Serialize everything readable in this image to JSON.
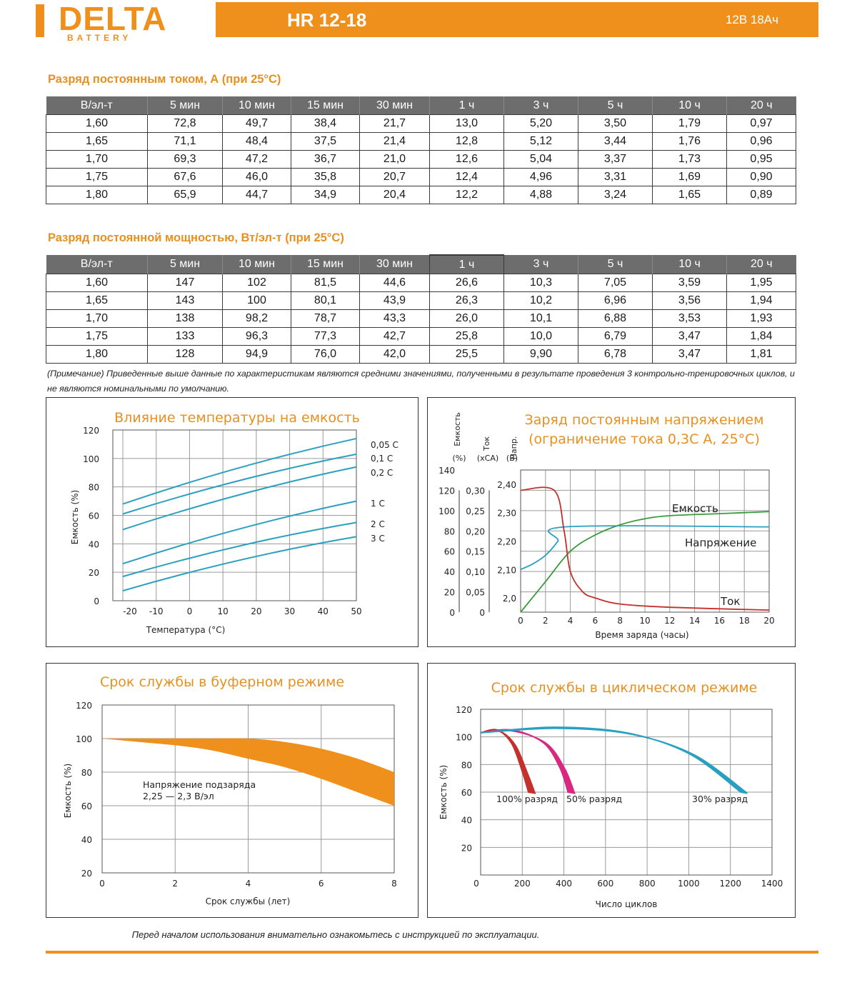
{
  "brand": {
    "name": "DELTA",
    "sub": "BATTERY"
  },
  "header": {
    "model": "HR 12-18",
    "spec": "12В  18Ач"
  },
  "current_table": {
    "title": "Разряд постоянным током, А (при 25°С)",
    "columns": [
      "В/эл-т",
      "5 мин",
      "10 мин",
      "15 мин",
      "30 мин",
      "1 ч",
      "3 ч",
      "5 ч",
      "10 ч",
      "20 ч"
    ],
    "rows": [
      [
        "1,60",
        "72,8",
        "49,7",
        "38,4",
        "21,7",
        "13,0",
        "5,20",
        "3,50",
        "1,79",
        "0,97"
      ],
      [
        "1,65",
        "71,1",
        "48,4",
        "37,5",
        "21,4",
        "12,8",
        "5,12",
        "3,44",
        "1,76",
        "0,96"
      ],
      [
        "1,70",
        "69,3",
        "47,2",
        "36,7",
        "21,0",
        "12,6",
        "5,04",
        "3,37",
        "1,73",
        "0,95"
      ],
      [
        "1,75",
        "67,6",
        "46,0",
        "35,8",
        "20,7",
        "12,4",
        "4,96",
        "3,31",
        "1,69",
        "0,90"
      ],
      [
        "1,80",
        "65,9",
        "44,7",
        "34,9",
        "20,4",
        "12,2",
        "4,88",
        "3,24",
        "1,65",
        "0,89"
      ]
    ]
  },
  "power_table": {
    "title": "Разряд постоянной мощностью, Вт/эл-т (при 25°С)",
    "columns": [
      "В/эл-т",
      "5 мин",
      "10 мин",
      "15 мин",
      "30 мин",
      "1 ч",
      "3 ч",
      "5 ч",
      "10 ч",
      "20 ч"
    ],
    "rows": [
      [
        "1,60",
        "147",
        "102",
        "81,5",
        "44,6",
        "26,6",
        "10,3",
        "7,05",
        "3,59",
        "1,95"
      ],
      [
        "1,65",
        "143",
        "100",
        "80,1",
        "43,9",
        "26,3",
        "10,2",
        "6,96",
        "3,56",
        "1,94"
      ],
      [
        "1,70",
        "138",
        "98,2",
        "78,7",
        "43,3",
        "26,0",
        "10,1",
        "6,88",
        "3,53",
        "1,93"
      ],
      [
        "1,75",
        "133",
        "96,3",
        "77,3",
        "42,7",
        "25,8",
        "10,0",
        "6,79",
        "3,47",
        "1,84"
      ],
      [
        "1,80",
        "128",
        "94,9",
        "76,0",
        "42,0",
        "25,5",
        "9,90",
        "6,78",
        "3,47",
        "1,81"
      ]
    ]
  },
  "note": "(Примечание) Приведенные выше данные по характеристикам являются средними значениями, полученными в результате проведения 3 контрольно-тренировочных циклов, и не являются номинальными по умолчанию.",
  "footer": "Перед началом использования внимательно ознакомьтесь с инструкцией по эксплуатации.",
  "colors": {
    "accent": "#f0901c",
    "title": "#e7901f",
    "teal": "#2aa0c0",
    "green": "#3b9a3b",
    "red": "#c4302b",
    "magenta": "#d8287f",
    "grid": "#9a9a9a"
  },
  "chart_data": [
    {
      "type": "line",
      "title": "Влияние температуры на емкость",
      "xlabel": "Температура (°С)",
      "ylabel": "Емкость (%)",
      "xlim": [
        -23,
        50
      ],
      "ylim": [
        0,
        120
      ],
      "x_ticks": [
        "-20",
        "-10",
        "0",
        "10",
        "20",
        "30",
        "40",
        "50"
      ],
      "y_ticks": [
        "0",
        "20",
        "40",
        "60",
        "80",
        "100",
        "120"
      ],
      "x": [
        -20,
        50
      ],
      "series": [
        {
          "name": "0,05 С",
          "values": [
            68,
            114
          ]
        },
        {
          "name": "0,1 С",
          "values": [
            61,
            103
          ]
        },
        {
          "name": "0,2 С",
          "values": [
            50,
            94
          ]
        },
        {
          "name": "1 С",
          "values": [
            26,
            70
          ]
        },
        {
          "name": "2 С",
          "values": [
            17,
            55
          ]
        },
        {
          "name": "3 С",
          "values": [
            7,
            45
          ]
        }
      ]
    },
    {
      "type": "line",
      "title": "Заряд постоянным напряжением",
      "subtitle": "(ограничение тока 0,3С А, 25°С)",
      "xlabel": "Время заряда (часы)",
      "y_axes": [
        {
          "label": "Емкость",
          "unit": "(%)",
          "ticks": [
            "0",
            "20",
            "40",
            "60",
            "80",
            "100",
            "120",
            "140"
          ]
        },
        {
          "label": "Ток",
          "unit": "(хСА)",
          "ticks": [
            "0",
            "0,05",
            "0,10",
            "0,15",
            "0,20",
            "0,25",
            "0,30"
          ]
        },
        {
          "label": "Напр.",
          "unit": "(В)",
          "ticks": [
            "2,0",
            "2,10",
            "2,20",
            "2,30",
            "2,40"
          ]
        }
      ],
      "xlim": [
        0,
        20
      ],
      "x_ticks": [
        "0",
        "2",
        "4",
        "6",
        "8",
        "10",
        "12",
        "14",
        "16",
        "18",
        "20"
      ],
      "series": [
        {
          "name": "Емкость",
          "axis": "capacity",
          "x": [
            0,
            2,
            4,
            6,
            8,
            10,
            12,
            16,
            20
          ],
          "values": [
            0,
            30,
            60,
            76,
            86,
            92,
            95,
            97,
            99
          ]
        },
        {
          "name": "Напряжение",
          "axis": "voltage",
          "x": [
            0,
            1,
            2,
            3,
            3.6,
            20
          ],
          "values": [
            2.1,
            2.12,
            2.15,
            2.2,
            2.25,
            2.25
          ]
        },
        {
          "name": "Ток",
          "axis": "current",
          "x": [
            0,
            2.7,
            3.5,
            4,
            5,
            6,
            8,
            12,
            20
          ],
          "values": [
            0.3,
            0.3,
            0.2,
            0.1,
            0.05,
            0.035,
            0.02,
            0.012,
            0.005
          ]
        }
      ]
    },
    {
      "type": "area",
      "title": "Срок службы в буферном режиме",
      "xlabel": "Срок службы (лет)",
      "ylabel": "Емкость (%)",
      "xlim": [
        0,
        8
      ],
      "ylim": [
        20,
        120
      ],
      "x_ticks": [
        "0",
        "2",
        "4",
        "6",
        "8"
      ],
      "y_ticks": [
        "20",
        "40",
        "60",
        "80",
        "100",
        "120"
      ],
      "annotation": [
        "Напряжение подзаряда",
        "2,25 — 2,3 В/эл"
      ],
      "x": [
        0,
        1,
        2,
        3,
        4,
        5,
        6,
        7,
        8
      ],
      "upper": [
        100,
        100,
        100,
        100,
        100,
        98,
        94,
        88,
        80
      ],
      "lower": [
        100,
        98,
        96,
        93,
        88,
        83,
        76,
        68,
        60
      ]
    },
    {
      "type": "area",
      "title": "Срок службы в циклическом режиме",
      "xlabel": "Число циклов",
      "ylabel": "Емкость (%)",
      "xlim": [
        0,
        1400
      ],
      "ylim": [
        0,
        120
      ],
      "x_ticks": [
        "0",
        "200",
        "400",
        "600",
        "800",
        "1000",
        "1200",
        "1400"
      ],
      "y_ticks": [
        "0",
        "20",
        "40",
        "60",
        "80",
        "100",
        "120"
      ],
      "series": [
        {
          "name": "100% разряд",
          "color": "red",
          "x": [
            0,
            80,
            150,
            200,
            230
          ],
          "values": [
            103,
            105,
            95,
            75,
            60
          ]
        },
        {
          "name": "50% разряд",
          "color": "magenta",
          "x": [
            0,
            150,
            300,
            380,
            420
          ],
          "values": [
            103,
            105,
            96,
            78,
            60
          ]
        },
        {
          "name": "30% разряд",
          "color": "teal",
          "x": [
            0,
            350,
            700,
            1000,
            1250
          ],
          "values": [
            103,
            107,
            103,
            88,
            60
          ]
        }
      ]
    }
  ]
}
